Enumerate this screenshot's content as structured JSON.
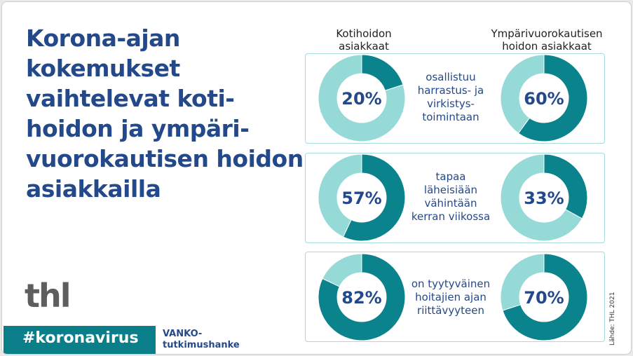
{
  "title": "Korona-ajan kokemukset vaihtelevat koti-hoidon ja ympäri-vuorokautisen hoidon asiakkailla",
  "title_lines": [
    "Korona-ajan",
    "kokemukset",
    "vaihtelevat koti-",
    "hoidon ja ympäri-",
    "vuorokautisen hoidon",
    "asiakkailla"
  ],
  "logo": "thl",
  "hashtag": "#koronavirus",
  "project": [
    "VANKO-",
    "tutkimushanke"
  ],
  "source": "Lähde: THL 2021",
  "colors": {
    "dark": "#0a838c",
    "light": "#96dad8",
    "text": "#24498a"
  },
  "chart_data": {
    "type": "pie",
    "subtype": "donut",
    "columns": [
      "Kotihoidon asiakkaat",
      "Ympärivuorokautisen hoidon asiakkaat"
    ],
    "column_lines": [
      [
        "Kotihoidon",
        "asiakkaat"
      ],
      [
        "Ympärivuorokautisen",
        "hoidon asiakkaat"
      ]
    ],
    "rows": [
      {
        "label_lines": [
          "osallistuu",
          "harrastus- ja",
          "virkistys-",
          "toimintaan"
        ],
        "values": [
          20,
          60
        ],
        "labels": [
          "20%",
          "60%"
        ]
      },
      {
        "label_lines": [
          "tapaa",
          "läheisiään",
          "vähintään",
          "kerran viikossa"
        ],
        "values": [
          57,
          33
        ],
        "labels": [
          "57%",
          "33%"
        ]
      },
      {
        "label_lines": [
          "on tyytyväinen",
          "hoitajien ajan",
          "riittävyyteen"
        ],
        "values": [
          82,
          70
        ],
        "labels": [
          "82%",
          "70%"
        ]
      }
    ]
  }
}
